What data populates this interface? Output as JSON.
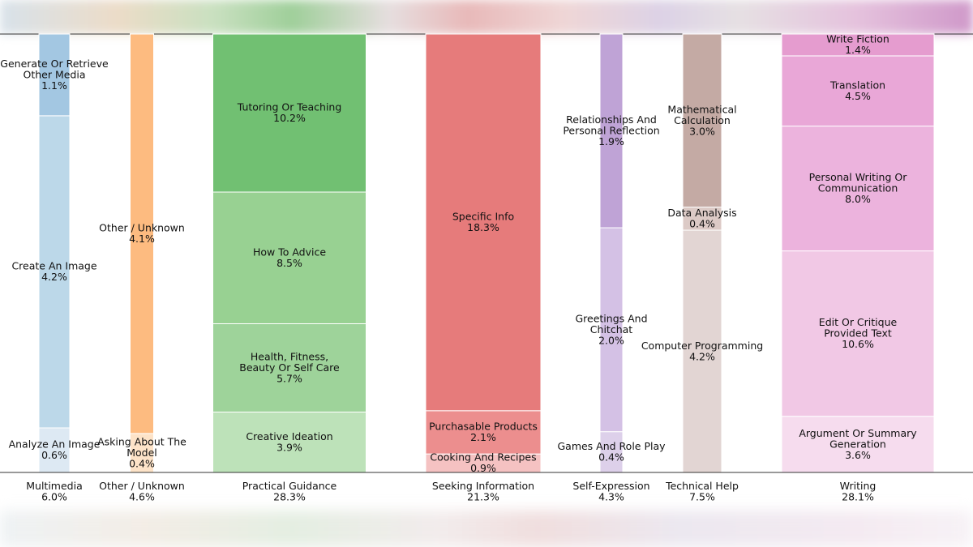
{
  "chart_data": {
    "type": "bar",
    "stacked": true,
    "grid": false,
    "legend": "none",
    "categories": [
      {
        "name": "Multimedia",
        "total": "6.0%",
        "color": "#9dc3e0",
        "segments": [
          {
            "label": "Analyze An Image",
            "value": 0.6,
            "value_text": "0.6%",
            "color": "#dde9f3"
          },
          {
            "label": "Create An Image",
            "value": 4.2,
            "value_text": "4.2%",
            "color": "#bcd8e9"
          },
          {
            "label": "Generate Or Retrieve Other Media",
            "value": 1.1,
            "value_text": "1.1%",
            "color": "#a3c7e2"
          }
        ]
      },
      {
        "name": "Other / Unknown",
        "total": "4.6%",
        "color": "#fdbb80",
        "segments": [
          {
            "label": "Asking About The Model",
            "value": 0.4,
            "value_text": "0.4%",
            "color": "#fde3c8"
          },
          {
            "label": "Other / Unknown",
            "value": 4.1,
            "value_text": "4.1%",
            "color": "#fdbb80"
          }
        ]
      },
      {
        "name": "Practical Guidance",
        "total": "28.3%",
        "color": "#6fbf6f",
        "segments": [
          {
            "label": "Creative Ideation",
            "value": 3.9,
            "value_text": "3.9%",
            "color": "#bde2b9"
          },
          {
            "label": "Health, Fitness, Beauty Or Self Care",
            "value": 5.7,
            "value_text": "5.7%",
            "color": "#9ed39a"
          },
          {
            "label": "How To Advice",
            "value": 8.5,
            "value_text": "8.5%",
            "color": "#98d192"
          },
          {
            "label": "Tutoring Or Teaching",
            "value": 10.2,
            "value_text": "10.2%",
            "color": "#71c072"
          }
        ]
      },
      {
        "name": "Seeking Information",
        "total": "21.3%",
        "color": "#e67a7a",
        "segments": [
          {
            "label": "Cooking And Recipes",
            "value": 0.9,
            "value_text": "0.9%",
            "color": "#f5c2c2"
          },
          {
            "label": "Purchasable Products",
            "value": 2.1,
            "value_text": "2.1%",
            "color": "#ec8e8e"
          },
          {
            "label": "Specific Info",
            "value": 18.3,
            "value_text": "18.3%",
            "color": "#e67b7b"
          }
        ]
      },
      {
        "name": "Self-Expression",
        "total": "4.3%",
        "color": "#bfa3d6",
        "segments": [
          {
            "label": "Games And Role Play",
            "value": 0.4,
            "value_text": "0.4%",
            "color": "#ddd0ea"
          },
          {
            "label": "Greetings And Chitchat",
            "value": 2.0,
            "value_text": "2.0%",
            "color": "#d4c1e5"
          },
          {
            "label": "Relationships And Personal Reflection",
            "value": 1.9,
            "value_text": "1.9%",
            "color": "#bfa3d6"
          }
        ]
      },
      {
        "name": "Technical Help",
        "total": "7.5%",
        "color": "#c4aaa4",
        "segments": [
          {
            "label": "Computer Programming",
            "value": 4.2,
            "value_text": "4.2%",
            "color": "#e2d5d3"
          },
          {
            "label": "Data Analysis",
            "value": 0.4,
            "value_text": "0.4%",
            "color": "#dccac6"
          },
          {
            "label": "Mathematical Calculation",
            "value": 3.0,
            "value_text": "3.0%",
            "color": "#c4aaa4"
          }
        ]
      },
      {
        "name": "Writing",
        "total": "28.1%",
        "color": "#e9a4d6",
        "segments": [
          {
            "label": "Argument Or Summary Generation",
            "value": 3.6,
            "value_text": "3.6%",
            "color": "#f6dcee"
          },
          {
            "label": "Edit Or Critique Provided Text",
            "value": 10.6,
            "value_text": "10.6%",
            "color": "#f1c8e5"
          },
          {
            "label": "Personal Writing Or Communication",
            "value": 8.0,
            "value_text": "8.0%",
            "color": "#ecb3dd"
          },
          {
            "label": "Translation",
            "value": 4.5,
            "value_text": "4.5%",
            "color": "#e9a7d7"
          },
          {
            "label": "Write Fiction",
            "value": 1.4,
            "value_text": "1.4%",
            "color": "#e59ccf"
          }
        ]
      }
    ]
  }
}
